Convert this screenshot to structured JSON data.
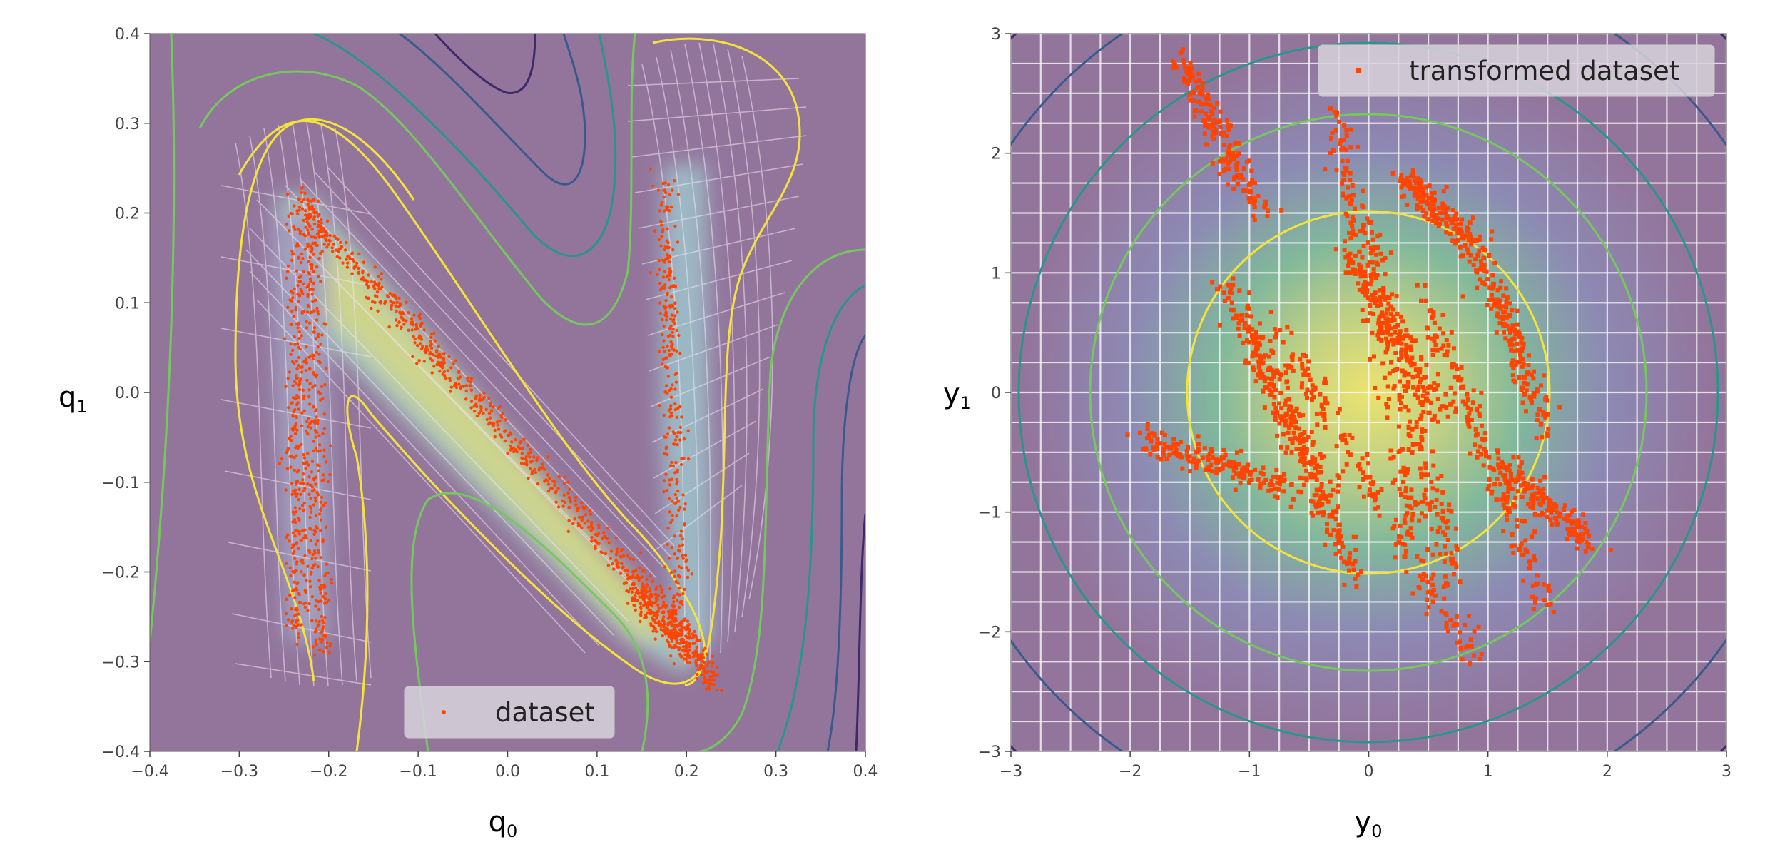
{
  "chart_data": [
    {
      "type": "scatter",
      "panel": "left",
      "title": "",
      "xlabel": "q",
      "xlabel_sub": "0",
      "ylabel": "q",
      "ylabel_sub": "1",
      "xlim": [
        -0.4,
        0.4
      ],
      "ylim": [
        -0.4,
        0.4
      ],
      "xticks": [
        "−0.4",
        "−0.3",
        "−0.2",
        "−0.1",
        "0.0",
        "0.1",
        "0.2",
        "0.3",
        "0.4"
      ],
      "yticks": [
        "−0.4",
        "−0.3",
        "−0.2",
        "−0.1",
        "0.0",
        "0.1",
        "0.2",
        "0.3",
        "0.4"
      ],
      "xtick_values": [
        -0.4,
        -0.3,
        -0.2,
        -0.1,
        0.0,
        0.1,
        0.2,
        0.3,
        0.4
      ],
      "ytick_values": [
        -0.4,
        -0.3,
        -0.2,
        -0.1,
        0.0,
        0.1,
        0.2,
        0.3,
        0.4
      ],
      "background": "filled density contour with contour lines and a deformed white grid",
      "legend": {
        "placement": "lower-center",
        "entries": [
          "dataset"
        ]
      },
      "series": [
        {
          "name": "dataset",
          "color": "#ff4500",
          "marker": "dot",
          "branches": [
            {
              "x": [
                -0.235,
                -0.235
              ],
              "y": [
                0.22,
                -0.27
              ]
            },
            {
              "x": [
                -0.22,
                -0.21
              ],
              "y": [
                0.22,
                -0.29
              ]
            },
            {
              "x": [
                -0.225,
                0.21
              ],
              "y": [
                0.2,
                -0.28
              ]
            },
            {
              "x": [
                0.175,
                0.195
              ],
              "y": [
                0.24,
                -0.28
              ]
            },
            {
              "x": [
                0.14,
                0.23
              ],
              "y": [
                -0.22,
                -0.32
              ]
            }
          ]
        }
      ]
    },
    {
      "type": "scatter",
      "panel": "right",
      "title": "",
      "xlabel": "y",
      "xlabel_sub": "0",
      "ylabel": "y",
      "ylabel_sub": "1",
      "xlim": [
        -3,
        3
      ],
      "ylim": [
        -3,
        3
      ],
      "xticks": [
        "−3",
        "−2",
        "−1",
        "0",
        "1",
        "2",
        "3"
      ],
      "yticks": [
        "−3",
        "−2",
        "−1",
        "0",
        "1",
        "2",
        "3"
      ],
      "xtick_values": [
        -3,
        -2,
        -1,
        0,
        1,
        2,
        3
      ],
      "ytick_values": [
        -3,
        -2,
        -1,
        0,
        1,
        2,
        3
      ],
      "background": "standard normal density with circular contour lines and white grid",
      "legend": {
        "placement": "top-right",
        "entries": [
          "transformed dataset"
        ]
      },
      "series": [
        {
          "name": "transformed dataset",
          "color": "#ff4500",
          "marker": "dot",
          "x_range": [
            -2.0,
            1.9
          ],
          "y_range": [
            -2.3,
            2.8
          ]
        }
      ]
    }
  ],
  "colors": {
    "background_purple": "#93759c",
    "scatter": "#ff4500",
    "contour_yellow": "#f4e33a",
    "contour_green": "#74c85d",
    "contour_teal": "#2a968b",
    "contour_blue": "#3a5a8e",
    "contour_navy": "#3d2a6a"
  }
}
